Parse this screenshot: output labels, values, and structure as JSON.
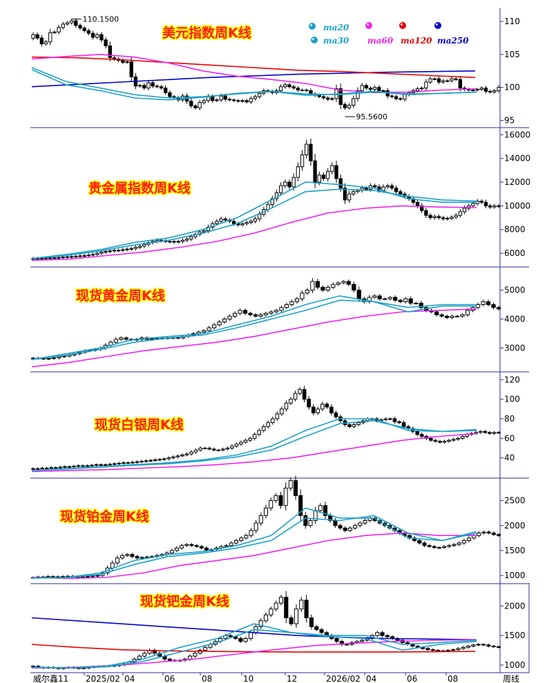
{
  "chart_data": [
    {
      "type": "candlestick",
      "title": "美元指数周K线",
      "y_ticks": [
        95,
        100,
        105,
        110
      ],
      "ylim": [
        94,
        112
      ],
      "high_label": "110.1500",
      "low_label": "95.5600",
      "legend": [
        {
          "name": "ma20",
          "color": "#1aa0c8"
        },
        {
          "name": "ma30",
          "color": "#1aa0c8"
        },
        {
          "name": "ma60",
          "color": "#ee22ee"
        },
        {
          "name": "ma120",
          "color": "#e60000"
        },
        {
          "name": "ma250",
          "color": "#0000cc"
        }
      ],
      "closes": [
        108.0,
        107.5,
        106.6,
        106.9,
        108.3,
        108.4,
        109.1,
        109.6,
        109.8,
        110.1,
        109.4,
        109.0,
        108.6,
        108.2,
        107.6,
        108.0,
        107.2,
        106.3,
        104.5,
        104.3,
        104.1,
        103.8,
        103.9,
        101.6,
        100.2,
        100.3,
        99.9,
        100.7,
        100.2,
        100.1,
        99.9,
        99.2,
        98.6,
        98.4,
        98.1,
        98.7,
        97.9,
        97.2,
        96.9,
        97.7,
        98.0,
        98.6,
        98.0,
        98.1,
        98.7,
        98.2,
        98.1,
        98.0,
        97.9,
        98.0,
        97.8,
        98.3,
        98.6,
        99.1,
        99.5,
        99.4,
        99.2,
        99.5,
        100.1,
        100.4,
        100.1,
        99.9,
        99.6,
        99.6,
        99.5,
        99.0,
        98.8,
        98.6,
        98.4,
        98.2,
        98.3,
        99.8,
        97.4,
        96.9,
        97.3,
        98.3,
        99.5,
        100.3,
        99.9,
        99.7,
        100.0,
        99.5,
        99.5,
        98.7,
        98.6,
        98.3,
        98.2,
        98.9,
        99.2,
        99.5,
        99.8,
        99.9,
        100.8,
        101.3,
        101.3,
        100.8,
        101.0,
        101.0,
        101.3,
        101.2,
        99.9,
        99.7,
        99.6,
        99.6,
        99.7,
        99.9,
        99.4,
        99.3,
        99.5,
        100.0
      ],
      "ma20_line": [
        102.7,
        100.4,
        99.5,
        98.4,
        98.1,
        98.5,
        99.1,
        99.4,
        98.8,
        99.0,
        99.4,
        98.9,
        99.1,
        99.3
      ],
      "ma30_line": [
        103.0,
        100.9,
        99.9,
        98.9,
        98.4,
        98.6,
        99.0,
        99.4,
        99.0,
        98.9,
        99.3,
        99.0,
        99.1,
        99.3
      ],
      "ma60_line": [
        104.3,
        104.7,
        105.0,
        104.6,
        103.7,
        102.5,
        101.7,
        101.2,
        100.6,
        99.6,
        99.2,
        99.3,
        99.6,
        99.8
      ],
      "ma120_line": [
        104.6,
        104.5,
        104.2,
        103.8,
        103.4,
        103.0,
        102.6,
        102.4,
        102.1,
        101.8,
        101.5
      ],
      "ma250_line": [
        100.1,
        100.8,
        101.5,
        102.0,
        102.3,
        102.5
      ]
    },
    {
      "type": "candlestick",
      "title": "贵金属指数周K线",
      "y_ticks": [
        6000,
        8000,
        10000,
        12000,
        14000,
        16000
      ],
      "ylim": [
        4900,
        16600
      ],
      "closes": [
        5550,
        5560,
        5570,
        5590,
        5600,
        5620,
        5640,
        5680,
        5700,
        5720,
        5750,
        5780,
        5800,
        5850,
        5900,
        6000,
        6100,
        6150,
        6200,
        6250,
        6250,
        6300,
        6350,
        6400,
        6500,
        6600,
        6750,
        6900,
        7000,
        7100,
        7050,
        7000,
        7000,
        6950,
        7000,
        7100,
        7200,
        7400,
        7600,
        7800,
        7900,
        8200,
        8500,
        8700,
        8900,
        8800,
        8700,
        8500,
        8400,
        8500,
        8600,
        8700,
        8900,
        9300,
        9700,
        10100,
        10600,
        11100,
        11700,
        12000,
        11600,
        12400,
        13300,
        14300,
        15200,
        13800,
        12000,
        12600,
        12300,
        12900,
        13400,
        12300,
        11500,
        10500,
        11000,
        11200,
        11300,
        11500,
        11400,
        11700,
        11600,
        11300,
        11600,
        11700,
        11500,
        11200,
        11000,
        10800,
        10600,
        10300,
        10000,
        9600,
        9200,
        9000,
        9100,
        9000,
        8900,
        8950,
        9050,
        9200,
        9500,
        9800,
        10000,
        10200,
        10400,
        10300,
        10000,
        9900,
        10000,
        9950
      ],
      "ma20_line": [
        5550,
        5900,
        6300,
        6900,
        7300,
        8000,
        9000,
        10500,
        12000,
        11800,
        11500,
        10600,
        10300,
        10300
      ],
      "ma30_line": [
        5550,
        5800,
        6200,
        6700,
        7100,
        7700,
        8500,
        9800,
        11200,
        11400,
        11300,
        10800,
        10500,
        10400
      ],
      "ma60_line": [
        5400,
        5500,
        5800,
        6100,
        6500,
        7000,
        7700,
        8600,
        9400,
        9800,
        10000,
        9900,
        9850
      ]
    },
    {
      "type": "candlestick",
      "title": "现货黄金周K线",
      "y_ticks": [
        3000,
        4000,
        5000
      ],
      "ylim": [
        2200,
        5800
      ],
      "closes": [
        2650,
        2640,
        2630,
        2640,
        2660,
        2700,
        2720,
        2760,
        2800,
        2850,
        2900,
        2920,
        2950,
        3000,
        3100,
        3200,
        3300,
        3350,
        3300,
        3280,
        3300,
        3350,
        3300,
        3320,
        3330,
        3340,
        3350,
        3360,
        3350,
        3400,
        3450,
        3500,
        3550,
        3600,
        3700,
        3800,
        3900,
        4000,
        4100,
        4200,
        4300,
        4200,
        4150,
        4100,
        4150,
        4200,
        4250,
        4300,
        4400,
        4500,
        4600,
        4700,
        4900,
        5000,
        5300,
        5100,
        5000,
        5100,
        5200,
        5250,
        5300,
        5200,
        5000,
        4700,
        4600,
        4750,
        4800,
        4700,
        4700,
        4750,
        4650,
        4600,
        4700,
        4550,
        4550,
        4400,
        4300,
        4250,
        4150,
        4100,
        4050,
        4100,
        4100,
        4150,
        4300,
        4400,
        4500,
        4600,
        4500,
        4400,
        4350
      ],
      "ma20_line": [
        2600,
        2800,
        3000,
        3300,
        3400,
        3500,
        3800,
        4100,
        4500,
        4800,
        4600,
        4250,
        4450,
        4450
      ],
      "ma30_line": [
        2600,
        2750,
        2950,
        3200,
        3350,
        3450,
        3700,
        4000,
        4300,
        4650,
        4600,
        4400,
        4500,
        4500
      ],
      "ma60_line": [
        2350,
        2500,
        2700,
        2900,
        3050,
        3200,
        3400,
        3650,
        3900,
        4100,
        4250,
        4300,
        4350
      ]
    },
    {
      "type": "candlestick",
      "title": "现货白银周K线",
      "y_ticks": [
        40,
        60,
        80,
        100,
        120
      ],
      "ylim": [
        20,
        128
      ],
      "closes": [
        29,
        29,
        29.5,
        29.5,
        30,
        30,
        30.5,
        31,
        31,
        31.5,
        32,
        32,
        32,
        32.5,
        33,
        33,
        33,
        33.5,
        34,
        34.5,
        35,
        35,
        35.5,
        36,
        36.5,
        37,
        37.5,
        38,
        38.5,
        39,
        40,
        41,
        42,
        43,
        44,
        46,
        48,
        50,
        50,
        49,
        48,
        48,
        49,
        50,
        52,
        54,
        56,
        58,
        60,
        64,
        68,
        72,
        76,
        80,
        85,
        90,
        96,
        100,
        106,
        110,
        100,
        92,
        86,
        90,
        95,
        92,
        86,
        82,
        78,
        74,
        72,
        74,
        76,
        78,
        80,
        80,
        78,
        79,
        80,
        80,
        77,
        76,
        72,
        70,
        67,
        64,
        62,
        60,
        58,
        57,
        56,
        57,
        58,
        59,
        60,
        62,
        64,
        65,
        66,
        67,
        66,
        65,
        66,
        66
      ],
      "ma20_line": [
        27,
        29,
        31,
        33,
        35,
        38,
        43,
        52,
        68,
        80,
        80,
        68,
        67,
        69
      ],
      "ma30_line": [
        27,
        28.5,
        30.5,
        32.5,
        34,
        37,
        41,
        48,
        62,
        75,
        78,
        70,
        67,
        68
      ],
      "ma60_line": [
        26,
        27,
        28,
        29.5,
        31,
        33,
        36,
        40,
        46,
        52,
        58,
        62,
        65
      ]
    },
    {
      "type": "candlestick",
      "title": "现货铂金周K线",
      "y_ticks": [
        1000,
        1500,
        2000,
        2500
      ],
      "ylim": [
        850,
        2950
      ],
      "closes": [
        960,
        970,
        965,
        980,
        975,
        970,
        980,
        985,
        970,
        965,
        975,
        980,
        990,
        1000,
        1050,
        1150,
        1250,
        1350,
        1400,
        1420,
        1380,
        1350,
        1360,
        1370,
        1380,
        1400,
        1420,
        1450,
        1500,
        1550,
        1600,
        1620,
        1600,
        1580,
        1550,
        1500,
        1520,
        1550,
        1580,
        1600,
        1650,
        1700,
        1750,
        1800,
        1900,
        2050,
        2200,
        2350,
        2500,
        2600,
        2400,
        2750,
        2900,
        2600,
        2200,
        2000,
        2100,
        2300,
        2400,
        2200,
        2100,
        2000,
        1950,
        1900,
        1950,
        2000,
        2050,
        2100,
        2150,
        2100,
        2050,
        2000,
        1950,
        1900,
        1850,
        1800,
        1750,
        1700,
        1650,
        1600,
        1580,
        1560,
        1560,
        1580,
        1600,
        1620,
        1650,
        1700,
        1750,
        1800,
        1850,
        1870,
        1850,
        1820,
        1800
      ],
      "ma20_line": [
        950,
        960,
        1050,
        1300,
        1420,
        1480,
        1600,
        1800,
        2350,
        2150,
        2150,
        1750,
        1700,
        1850
      ],
      "ma30_line": [
        950,
        955,
        1020,
        1220,
        1380,
        1450,
        1550,
        1700,
        2150,
        2100,
        2200,
        1850,
        1700,
        1880
      ],
      "ma60_line": [
        960,
        940,
        960,
        1050,
        1200,
        1300,
        1400,
        1550,
        1700,
        1800,
        1850,
        1800,
        1800
      ]
    },
    {
      "type": "candlestick",
      "title": "现货钯金周K线",
      "y_ticks": [
        1000,
        1500,
        2000
      ],
      "ylim": [
        870,
        2380
      ],
      "closes": [
        980,
        960,
        950,
        960,
        950,
        940,
        950,
        960,
        950,
        945,
        950,
        960,
        970,
        975,
        980,
        985,
        990,
        1000,
        1020,
        1050,
        1100,
        1150,
        1200,
        1250,
        1200,
        1150,
        1100,
        1080,
        1070,
        1080,
        1100,
        1150,
        1200,
        1250,
        1300,
        1350,
        1400,
        1450,
        1500,
        1480,
        1450,
        1400,
        1450,
        1550,
        1650,
        1750,
        1850,
        1950,
        2050,
        2150,
        1800,
        1700,
        1950,
        2100,
        1800,
        1650,
        1600,
        1550,
        1500,
        1450,
        1400,
        1350,
        1350,
        1380,
        1400,
        1420,
        1450,
        1500,
        1550,
        1500,
        1480,
        1450,
        1420,
        1380,
        1350,
        1320,
        1300,
        1280,
        1260,
        1250,
        1240,
        1240,
        1250,
        1260,
        1280,
        1300,
        1320,
        1340,
        1350,
        1340,
        1320,
        1310,
        1300
      ],
      "ma20_line": [
        960,
        950,
        980,
        1100,
        1300,
        1450,
        1700,
        1550,
        1480,
        1450,
        1250,
        1350,
        1400
      ],
      "ma30_line": [
        960,
        950,
        970,
        1060,
        1220,
        1380,
        1600,
        1550,
        1500,
        1500,
        1350,
        1380,
        1420
      ],
      "ma60_line": [
        950,
        960,
        990,
        1040,
        1100,
        1180,
        1260,
        1330,
        1370,
        1400,
        1420,
        1430
      ],
      "ma120_line": [
        1350,
        1300,
        1260,
        1240,
        1230,
        1225,
        1220,
        1220,
        1220,
        1225,
        1230
      ],
      "ma250_line": [
        1800,
        1750,
        1700,
        1650,
        1600,
        1550,
        1500,
        1470,
        1450,
        1440,
        1430
      ]
    }
  ],
  "x_axis": {
    "labels": [
      "威尔鑫11",
      "2025/02",
      "04",
      "06",
      "08",
      "10",
      "12",
      "2026/02",
      "04",
      "06",
      "08",
      "周线"
    ]
  }
}
